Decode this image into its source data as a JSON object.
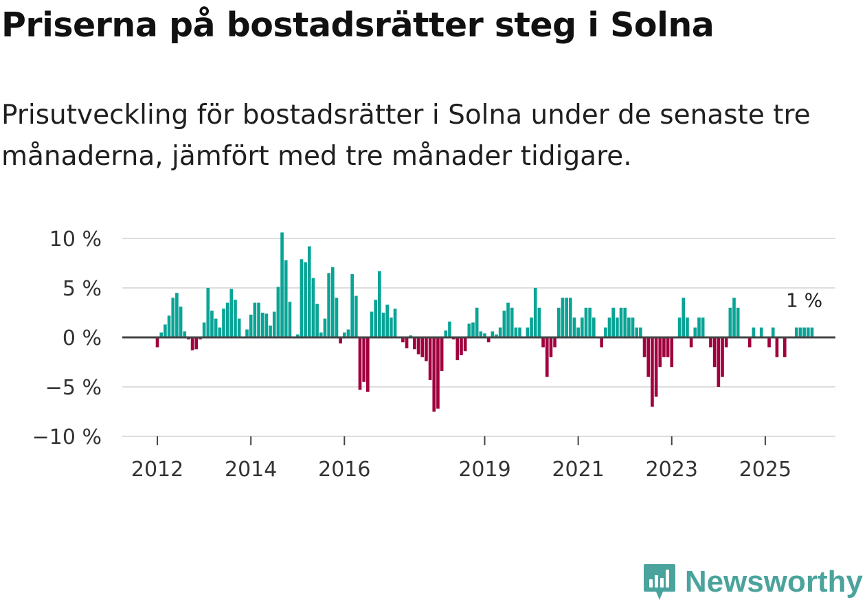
{
  "header": {
    "title": "Priserna på bostadsrätter steg i Solna",
    "subtitle": "Prisutveckling för bostadsrätter i Solna under de senaste tre månaderna, jämfört med tre månader tidigare."
  },
  "brand": {
    "name": "Newsworthy"
  },
  "colors": {
    "positive": "#0aa496",
    "negative": "#a0003e",
    "grid": "#dddddd",
    "zero_line": "#444444",
    "text": "#333333",
    "brand": "#4aa39c"
  },
  "chart_data": {
    "type": "bar",
    "title": "",
    "xlabel": "",
    "ylabel": "",
    "ylim": [
      -10,
      10
    ],
    "y_ticks": [
      {
        "value": 10,
        "label": "10 %"
      },
      {
        "value": 5,
        "label": "5 %"
      },
      {
        "value": 0,
        "label": "0 %"
      },
      {
        "value": -5,
        "label": "−5 %"
      },
      {
        "value": -10,
        "label": "−10 %"
      }
    ],
    "x_start": 2011.25,
    "x_end": 2026.5,
    "x_ticks": [
      {
        "value": 2012,
        "label": "2012"
      },
      {
        "value": 2014,
        "label": "2014"
      },
      {
        "value": 2016,
        "label": "2016"
      },
      {
        "value": 2019,
        "label": "2019"
      },
      {
        "value": 2021,
        "label": "2021"
      },
      {
        "value": 2023,
        "label": "2023"
      },
      {
        "value": 2025,
        "label": "2025"
      }
    ],
    "series_start": 2012.0,
    "step_months": 1,
    "values": [
      -1.0,
      0.5,
      1.3,
      2.2,
      4.0,
      4.5,
      3.1,
      0.6,
      -0.2,
      -1.3,
      -1.2,
      -0.2,
      1.5,
      5.0,
      2.7,
      1.9,
      1.0,
      2.9,
      3.5,
      4.9,
      3.8,
      1.9,
      0.0,
      0.8,
      2.3,
      3.5,
      3.5,
      2.5,
      2.4,
      1.2,
      2.6,
      5.1,
      10.6,
      7.8,
      3.6,
      0.0,
      0.3,
      7.9,
      7.6,
      9.2,
      6.0,
      3.4,
      0.5,
      1.9,
      6.5,
      7.1,
      4.0,
      -0.6,
      0.5,
      0.8,
      6.4,
      4.2,
      -5.3,
      -4.5,
      -5.5,
      2.6,
      3.8,
      6.7,
      2.5,
      3.3,
      2.0,
      2.9,
      0.0,
      -0.5,
      -1.1,
      0.2,
      -1.2,
      -1.7,
      -2.0,
      -2.4,
      -4.3,
      -7.5,
      -7.2,
      -3.4,
      0.7,
      1.6,
      -0.2,
      -2.3,
      -1.8,
      -1.4,
      1.4,
      1.5,
      3.0,
      0.6,
      0.4,
      -0.5,
      0.6,
      0.3,
      1.0,
      2.7,
      3.5,
      3.0,
      1.0,
      1.0,
      0.0,
      1.0,
      2.0,
      5.0,
      3.0,
      -1.0,
      -4.0,
      -2.0,
      -1.0,
      3.0,
      4.0,
      4.0,
      4.0,
      2.0,
      1.0,
      2.0,
      3.0,
      3.0,
      2.0,
      0.0,
      -1.0,
      1.0,
      2.0,
      3.0,
      2.0,
      3.0,
      3.0,
      2.0,
      2.0,
      1.0,
      1.0,
      -2.0,
      -4.0,
      -7.0,
      -6.0,
      -3.0,
      -2.0,
      -2.0,
      -3.0,
      0.0,
      2.0,
      4.0,
      2.0,
      -1.0,
      1.0,
      2.0,
      2.0,
      0.0,
      -1.0,
      -3.0,
      -5.0,
      -4.0,
      -1.0,
      3.0,
      4.0,
      3.0,
      0.0,
      0.0,
      -1.0,
      1.0,
      0.0,
      1.0,
      0.0,
      -1.0,
      1.0,
      -2.0,
      0.0,
      -2.0,
      0.0,
      0.0,
      1.0,
      1.0,
      1.0,
      1.0,
      1.0
    ],
    "annotation": {
      "label": "1 %",
      "value": 1
    }
  }
}
